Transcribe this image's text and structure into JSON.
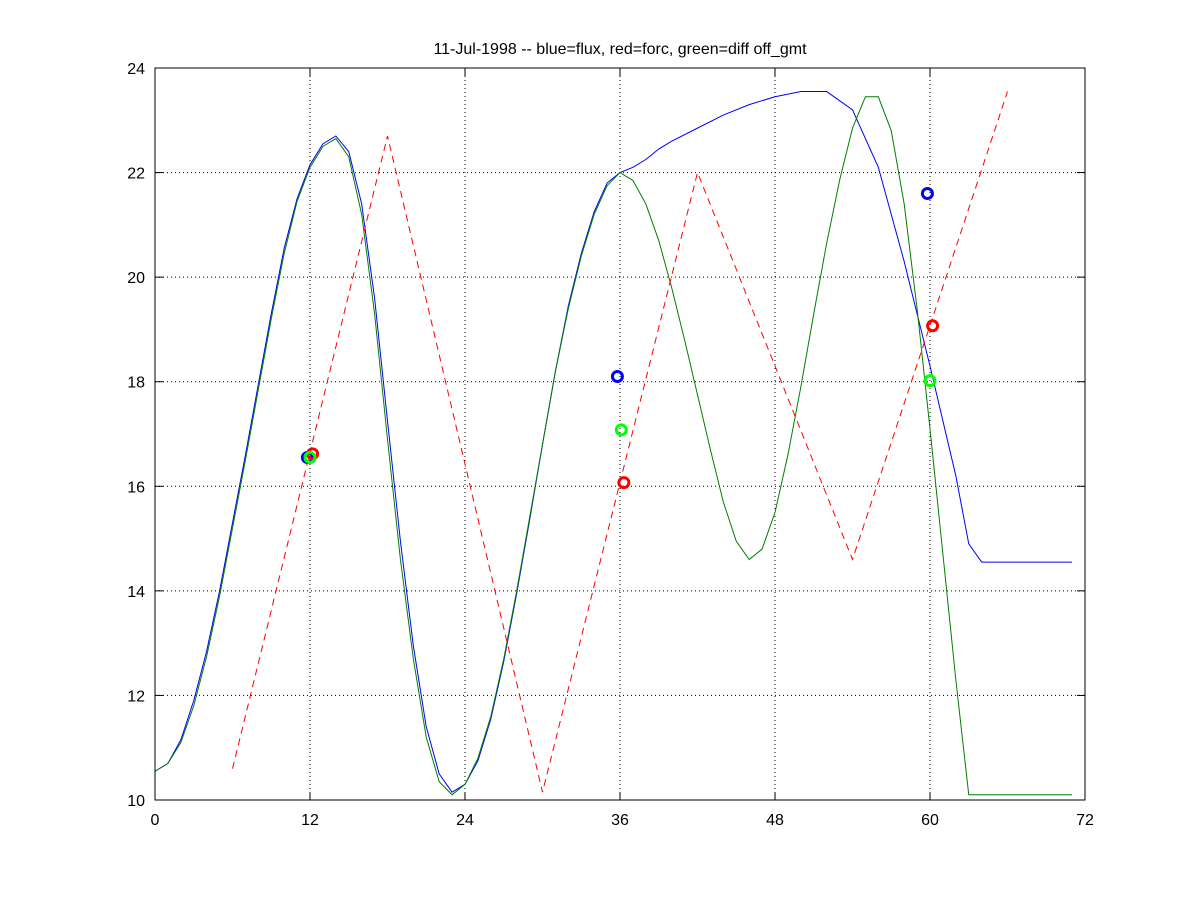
{
  "chart_data": {
    "type": "line",
    "title": "11-Jul-1998 -- blue=flux, red=forc, green=diff off_gmt",
    "xlabel": "",
    "ylabel": "",
    "xlim": [
      0,
      72
    ],
    "ylim": [
      10,
      24
    ],
    "xticks": [
      0,
      12,
      24,
      36,
      48,
      60,
      72
    ],
    "yticks": [
      10,
      12,
      14,
      16,
      18,
      20,
      22,
      24
    ],
    "grid": true,
    "series": [
      {
        "color": "#0000ff",
        "style": "solid",
        "x": [
          0,
          1,
          2,
          3,
          4,
          5,
          6,
          7,
          8,
          9,
          10,
          11,
          12,
          13,
          14,
          15,
          16,
          17,
          18,
          19,
          20,
          21,
          22,
          23,
          24,
          25,
          26,
          27,
          28,
          29,
          30,
          31,
          32,
          33,
          34,
          35,
          36,
          37,
          38,
          39,
          40,
          42,
          44,
          46,
          48,
          50,
          52,
          54,
          56,
          58,
          60,
          62,
          63,
          64,
          65,
          66,
          67,
          68,
          69,
          70,
          71
        ],
        "y": [
          10.55,
          10.7,
          11.15,
          11.9,
          12.85,
          14.0,
          15.3,
          16.6,
          17.95,
          19.3,
          20.55,
          21.5,
          22.15,
          22.55,
          22.7,
          22.4,
          21.4,
          19.6,
          17.25,
          14.95,
          12.95,
          11.4,
          10.5,
          10.15,
          10.3,
          10.75,
          11.55,
          12.65,
          13.95,
          15.35,
          16.8,
          18.2,
          19.45,
          20.45,
          21.25,
          21.8,
          22.0,
          22.1,
          22.25,
          22.45,
          22.6,
          22.85,
          23.1,
          23.3,
          23.45,
          23.55,
          23.55,
          23.2,
          22.1,
          20.3,
          18.3,
          16.2,
          14.9,
          14.55,
          14.55,
          14.55,
          14.55,
          14.55,
          14.55,
          14.55,
          14.55
        ]
      },
      {
        "color": "#007f00",
        "style": "solid",
        "x": [
          0,
          1,
          2,
          3,
          4,
          5,
          6,
          7,
          8,
          9,
          10,
          11,
          12,
          13,
          14,
          15,
          16,
          17,
          18,
          19,
          20,
          21,
          22,
          23,
          24,
          25,
          26,
          27,
          28,
          29,
          30,
          31,
          32,
          33,
          34,
          35,
          36,
          37,
          38,
          39,
          40,
          41,
          42,
          43,
          44,
          45,
          46,
          47,
          48,
          49,
          50,
          51,
          52,
          53,
          54,
          55,
          56,
          57,
          58,
          59,
          60,
          61,
          62,
          63,
          64,
          65,
          66,
          67,
          68,
          69,
          70,
          71
        ],
        "y": [
          10.55,
          10.7,
          11.1,
          11.8,
          12.75,
          13.9,
          15.2,
          16.5,
          17.85,
          19.2,
          20.45,
          21.45,
          22.1,
          22.5,
          22.65,
          22.3,
          21.2,
          19.3,
          16.9,
          14.6,
          12.7,
          11.2,
          10.35,
          10.1,
          10.3,
          10.8,
          11.6,
          12.7,
          14.0,
          15.4,
          16.8,
          18.2,
          19.4,
          20.4,
          21.2,
          21.75,
          22.0,
          21.85,
          21.4,
          20.7,
          19.8,
          18.8,
          17.75,
          16.7,
          15.7,
          14.95,
          14.6,
          14.8,
          15.5,
          16.6,
          17.9,
          19.3,
          20.65,
          21.85,
          22.85,
          23.45,
          23.45,
          22.8,
          21.4,
          19.4,
          17.1,
          14.7,
          12.3,
          10.1,
          10.1,
          10.1,
          10.1,
          10.1,
          10.1,
          10.1,
          10.1,
          10.1
        ]
      },
      {
        "color": "#ff0000",
        "style": "dashed",
        "x": [
          6,
          18,
          30,
          42,
          54,
          66
        ],
        "y": [
          10.6,
          22.7,
          10.15,
          22.0,
          14.6,
          23.55
        ]
      }
    ],
    "markers": [
      {
        "x": 11.8,
        "y": 16.55,
        "color": "#0000ff"
      },
      {
        "x": 12.2,
        "y": 16.62,
        "color": "#ff0000"
      },
      {
        "x": 12.0,
        "y": 16.55,
        "color": "#00ff00"
      },
      {
        "x": 35.8,
        "y": 18.1,
        "color": "#0000ff"
      },
      {
        "x": 36.1,
        "y": 17.08,
        "color": "#00ff00"
      },
      {
        "x": 36.3,
        "y": 16.07,
        "color": "#ff0000"
      },
      {
        "x": 59.8,
        "y": 21.6,
        "color": "#0000ff"
      },
      {
        "x": 60.2,
        "y": 19.07,
        "color": "#ff0000"
      },
      {
        "x": 60.0,
        "y": 18.02,
        "color": "#00ff00"
      }
    ]
  }
}
